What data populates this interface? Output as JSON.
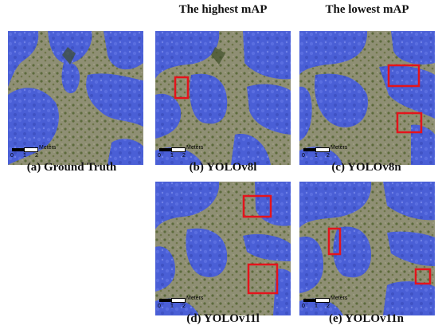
{
  "headers": {
    "highest": "The highest mAP",
    "lowest": "The lowest mAP"
  },
  "panels": [
    {
      "id": "a",
      "caption": "(a) Ground Truth"
    },
    {
      "id": "b",
      "caption": "(b) YOLOv8l"
    },
    {
      "id": "c",
      "caption": "(c) YOLOv8n"
    },
    {
      "id": "d",
      "caption": "(d) YOLOv11l"
    },
    {
      "id": "e",
      "caption": "(e) YOLOv11n"
    }
  ],
  "scalebar": {
    "unit": "Meters",
    "ticks": [
      "0",
      "1",
      "2"
    ]
  },
  "colors": {
    "mask": "#4a5fd6",
    "ground": "#8f8f74",
    "vegetation": "#5d6b3c",
    "error_box": "#e4141c"
  }
}
